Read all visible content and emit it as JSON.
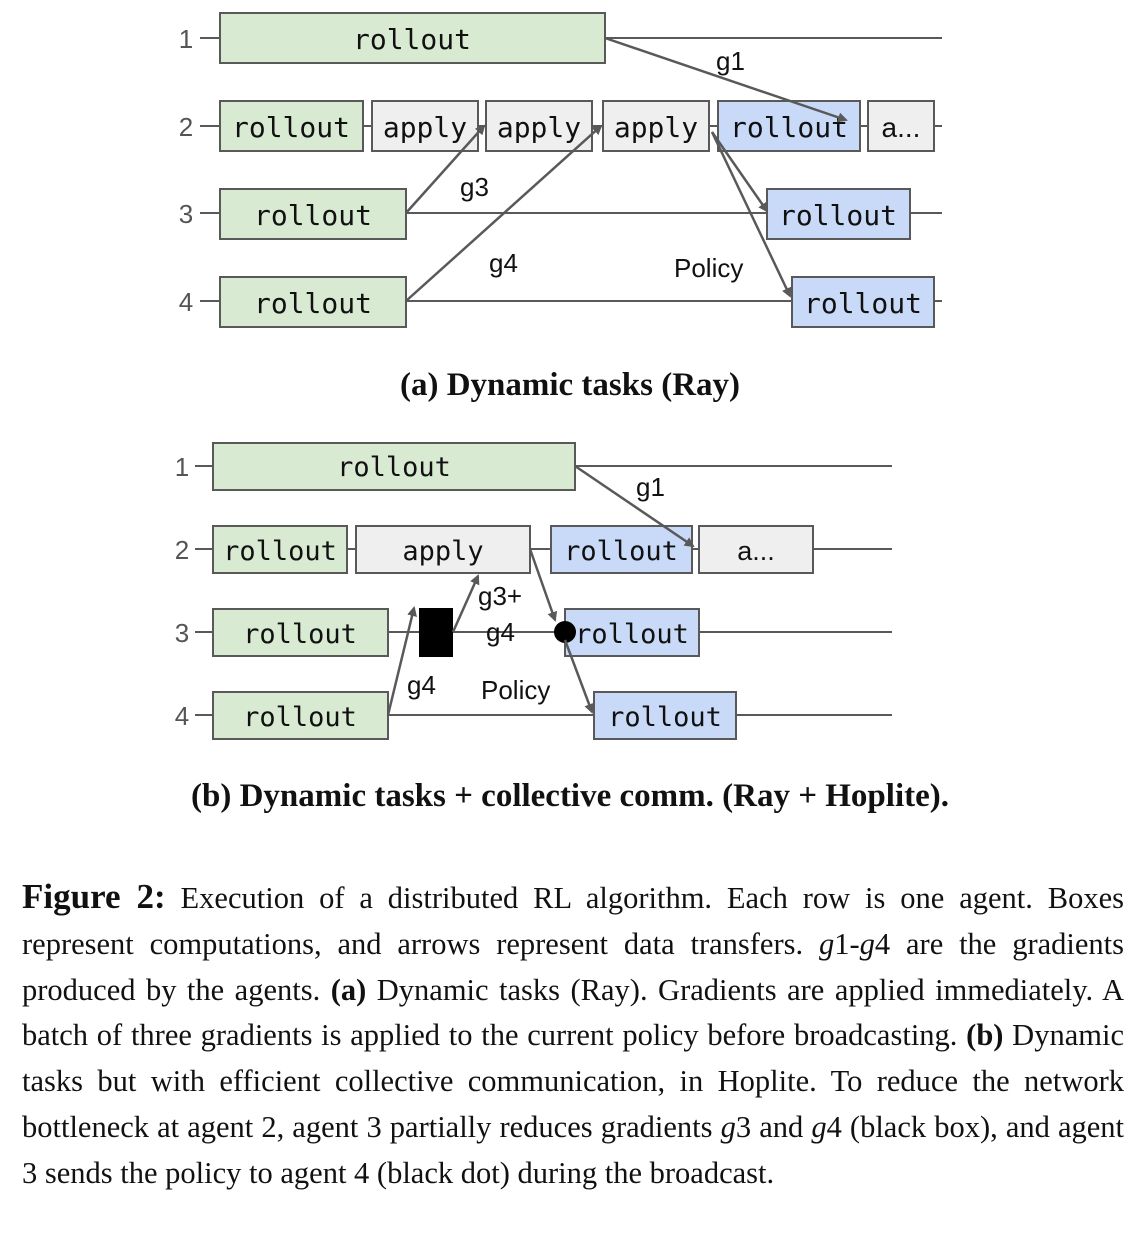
{
  "diagram_a": {
    "caption": "(a) Dynamic tasks (Ray)",
    "row_labels": [
      "1",
      "2",
      "3",
      "4"
    ],
    "boxes": {
      "r1_rollout": "rollout",
      "r2_rollout": "rollout",
      "r2_apply1": "apply",
      "r2_apply2": "apply",
      "r2_apply3": "apply",
      "r2_rollout2": "rollout",
      "r2_more": "a...",
      "r3_rollout": "rollout",
      "r3_rollout2": "rollout",
      "r4_rollout": "rollout",
      "r4_rollout2": "rollout"
    },
    "labels": {
      "g1": "g1",
      "g3": "g3",
      "g4": "g4",
      "policy": "Policy"
    }
  },
  "diagram_b": {
    "caption": "(b) Dynamic tasks + collective comm. (Ray + Hoplite).",
    "row_labels": [
      "1",
      "2",
      "3",
      "4"
    ],
    "boxes": {
      "r1_rollout": "rollout",
      "r2_rollout": "rollout",
      "r2_apply": "apply",
      "r2_rollout2": "rollout",
      "r2_more": "a...",
      "r3_rollout": "rollout",
      "r3_rollout2": "rollout",
      "r4_rollout": "rollout",
      "r4_rollout2": "rollout"
    },
    "labels": {
      "g1": "g1",
      "g3g4_line1": "g3+",
      "g3g4_line2": "g4",
      "g4": "g4",
      "policy": "Policy"
    }
  },
  "caption": {
    "figure_label": "Figure 2:",
    "text1": " Execution of a distributed RL algorithm. Each row is one agent. Boxes represent computations, and arrows represent data transfers. ",
    "g1": "g",
    "g1_num": "1",
    "dash": "-",
    "g4": "g",
    "g4_num": "4",
    "text2": " are the gradients produced by the agents. ",
    "a_label": "(a)",
    "text3": " Dynamic tasks (Ray). Gradients are applied immediately. A batch of three gradients is applied to the current policy before broadcasting. ",
    "b_label": "(b)",
    "text4": " Dynamic tasks but with efficient collective communication, in Hoplite. To reduce the network bottleneck at agent 2, agent 3 partially reduces gradients ",
    "g3b": "g",
    "g3b_num": "3",
    "and": " and ",
    "g4b": "g",
    "g4b_num": "4",
    "text5": " (black box), and agent 3 sends the policy to agent 4 (black dot) during the broadcast."
  },
  "colors": {
    "green_fill": "#d9ead3",
    "blue_fill": "#c9daf8",
    "gray_fill": "#efefef",
    "stroke": "#595959",
    "arrow": "#595959"
  }
}
